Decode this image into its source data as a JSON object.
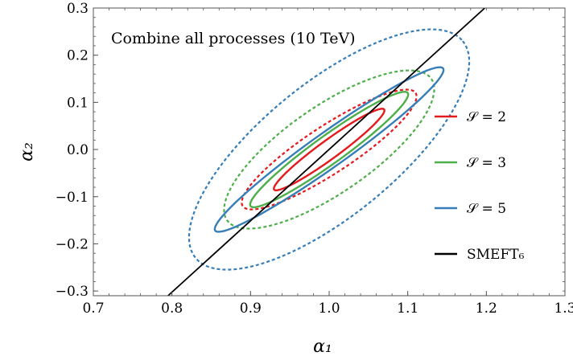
{
  "chart_data": {
    "type": "scatter",
    "title": "",
    "annotation": "Combine all processes (10 TeV)",
    "xlabel": "α₁",
    "ylabel": "α₂",
    "xlim": [
      0.7,
      1.3
    ],
    "ylim": [
      -0.31,
      0.3
    ],
    "xticks": [
      0.7,
      0.8,
      0.9,
      1.0,
      1.1,
      1.2,
      1.3
    ],
    "xtick_labels": [
      "0.7",
      "0.8",
      "0.9",
      "1.0",
      "1.1",
      "1.2",
      "1.3"
    ],
    "yticks": [
      0.3,
      0.2,
      0.1,
      0.0,
      -0.1,
      -0.2,
      -0.3
    ],
    "ytick_labels": [
      "0.3",
      "0.2",
      "0.1",
      "0.0",
      "−0.1",
      "−0.2",
      "−0.3"
    ],
    "grid": false,
    "legend_position": "right",
    "series": [
      {
        "name": "𝒮 = 2",
        "color": "#e41a1c",
        "contours": [
          {
            "style": "solid",
            "center": [
              1.0,
              0.0
            ],
            "major_end": [
              1.07,
              0.085
            ],
            "minor_halfwidth": 0.012
          },
          {
            "style": "dashed",
            "center": [
              1.0,
              0.0
            ],
            "major_end": [
              1.11,
              0.12
            ],
            "minor_halfwidth": 0.03
          }
        ]
      },
      {
        "name": "𝒮 = 3",
        "color": "#4daf4a",
        "contours": [
          {
            "style": "solid",
            "center": [
              1.0,
              0.0
            ],
            "major_end": [
              1.1,
              0.12
            ],
            "minor_halfwidth": 0.018
          },
          {
            "style": "dashed",
            "center": [
              1.0,
              0.0
            ],
            "major_end": [
              1.13,
              0.15
            ],
            "minor_halfwidth": 0.055
          }
        ]
      },
      {
        "name": "𝒮 = 5",
        "color": "#377eb8",
        "contours": [
          {
            "style": "solid",
            "center": [
              1.0,
              0.0
            ],
            "major_end": [
              1.145,
              0.172
            ],
            "minor_halfwidth": 0.022
          },
          {
            "style": "dashed",
            "center": [
              1.0,
              0.0
            ],
            "major_end": [
              1.17,
              0.23
            ],
            "minor_halfwidth": 0.085
          }
        ]
      },
      {
        "name": "SMEFT₆",
        "color": "#000000",
        "line": [
          [
            0.795,
            -0.31
          ],
          [
            1.198,
            0.3
          ]
        ]
      }
    ]
  }
}
